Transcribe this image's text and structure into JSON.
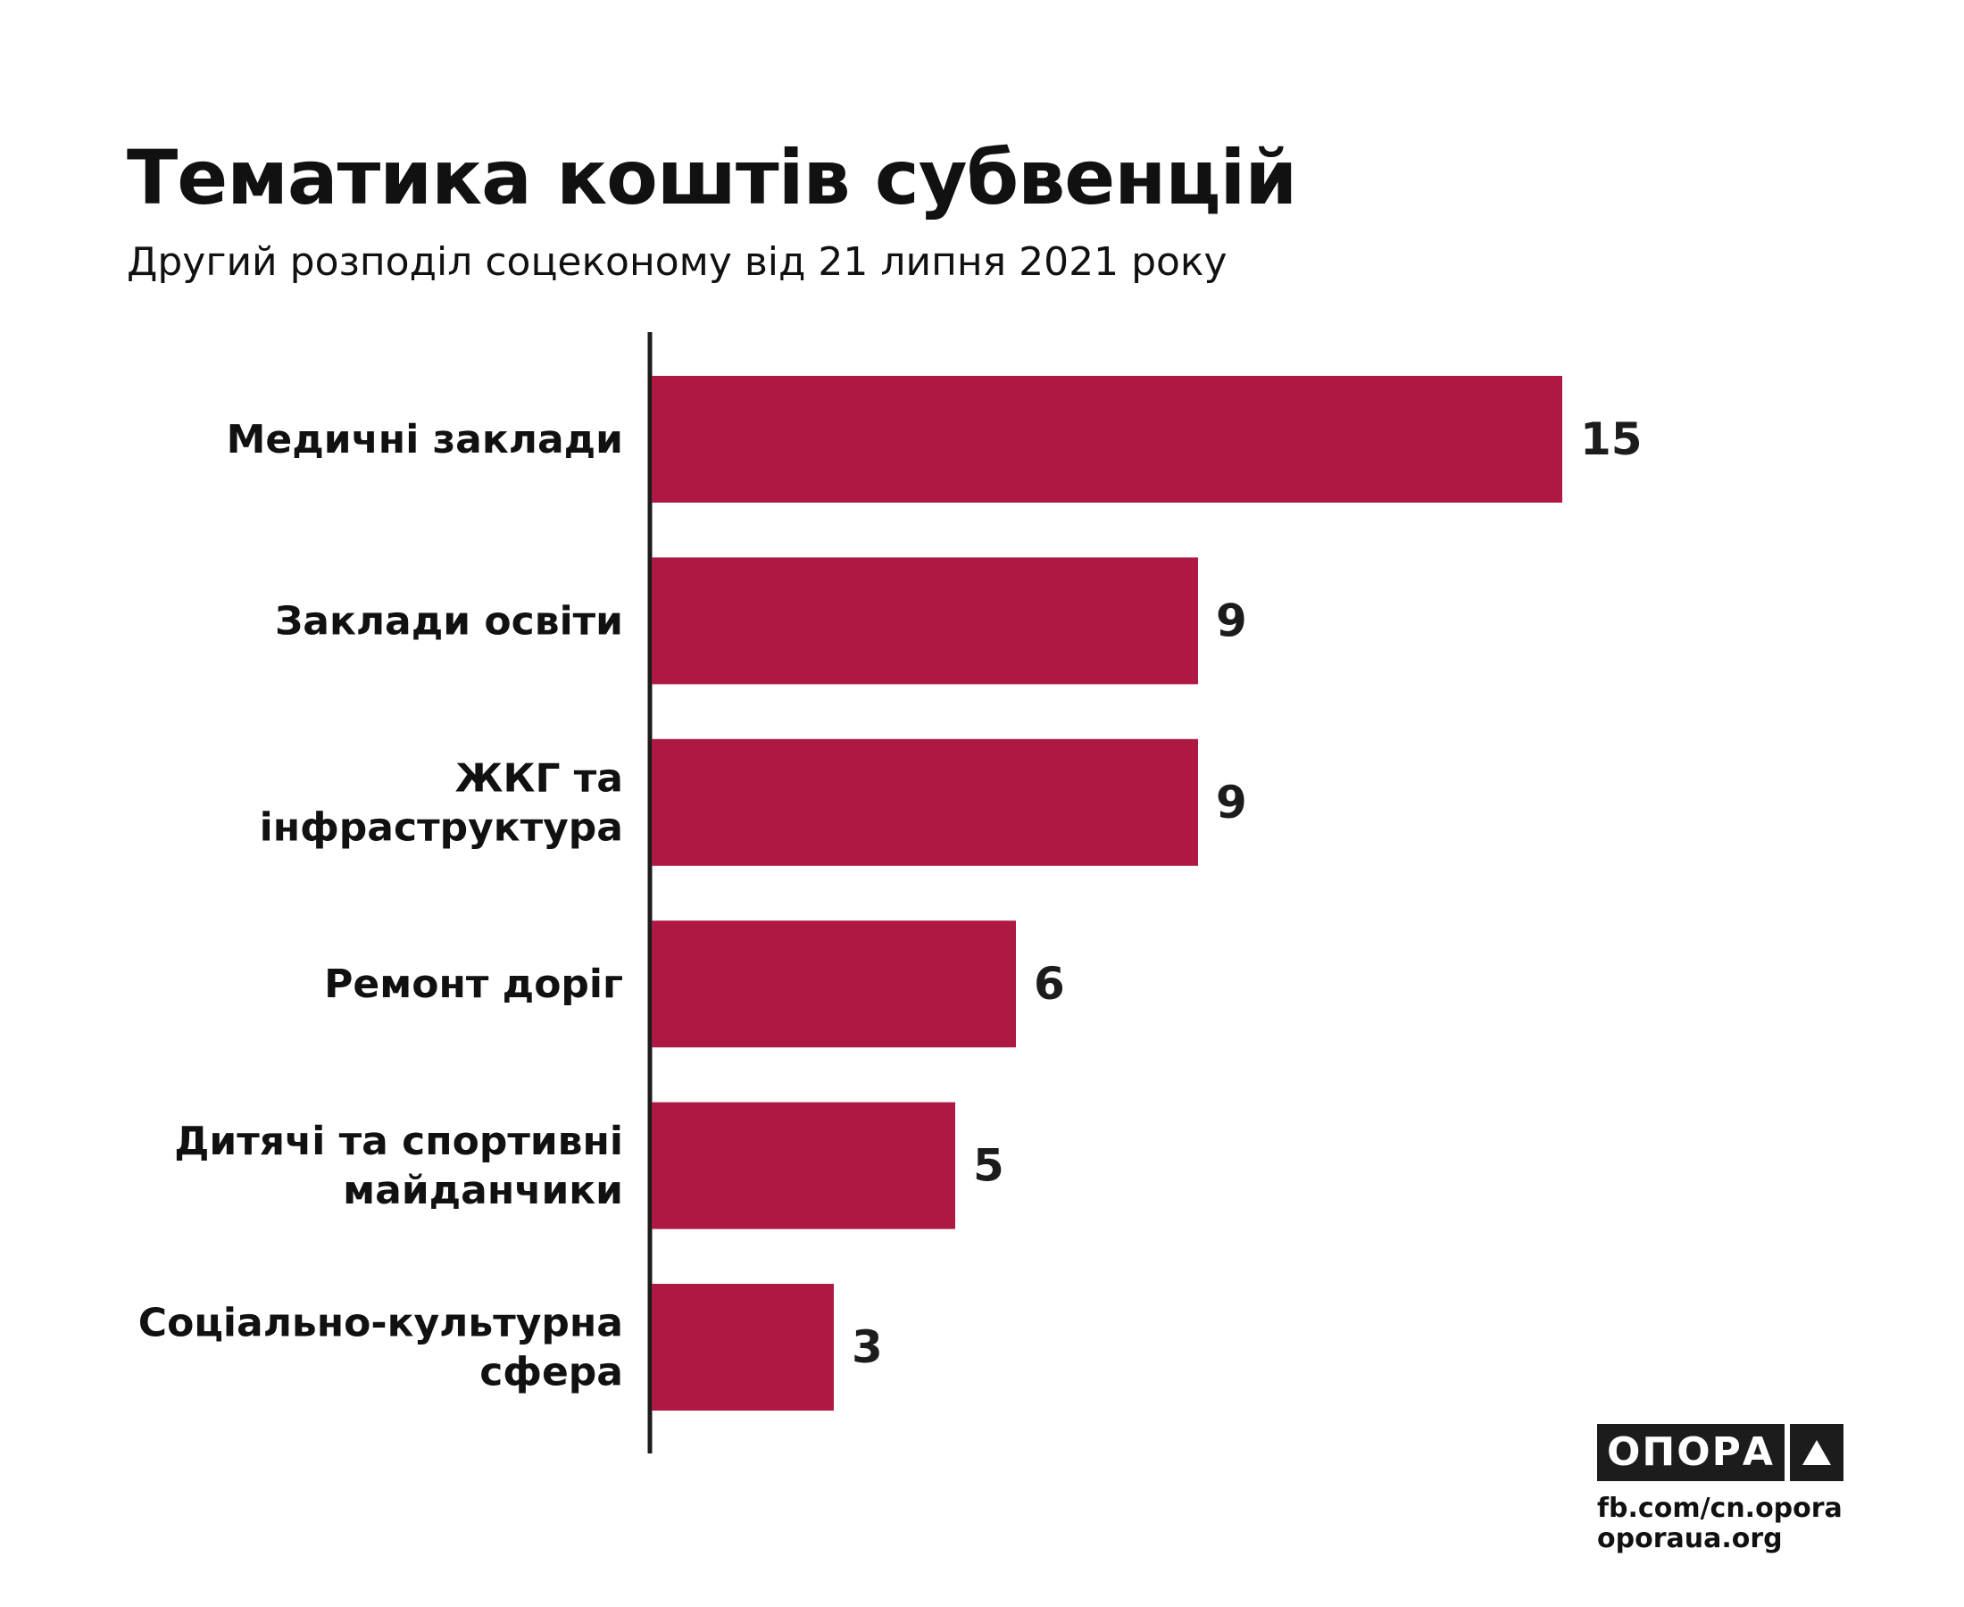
{
  "header": {
    "title": "Тематика коштів субвенцій",
    "subtitle": "Другий розподіл соцеконому від 21 липня 2021 року"
  },
  "chart_data": {
    "type": "bar",
    "orientation": "horizontal",
    "title": "Тематика коштів субвенцій",
    "subtitle": "Другий розподіл соцеконому від 21 липня 2021 року",
    "categories": [
      "Медичні заклади",
      "Заклади освіти",
      "ЖКГ та інфраструктура",
      "Ремонт доріг",
      "Дитячі та спортивні майданчики",
      "Соціально-культурна сфера"
    ],
    "category_lines": [
      [
        "Медичні заклади"
      ],
      [
        "Заклади освіти"
      ],
      [
        "ЖКГ та",
        "інфраструктура"
      ],
      [
        "Ремонт доріг"
      ],
      [
        "Дитячі та спортивні",
        "майданчики"
      ],
      [
        "Соціально-культурна",
        "сфера"
      ]
    ],
    "values": [
      15,
      9,
      9,
      6,
      5,
      3
    ],
    "xlabel": "",
    "ylabel": "",
    "xlim": [
      0,
      15
    ],
    "grid": false,
    "data_labels": true,
    "bar_color": "#ad1942",
    "axis_color": "#1c1c1c"
  },
  "brand": {
    "logo_text": "ОПОРА",
    "logo_icon": "triangle-up-icon",
    "links": [
      "fb.com/cn.opora",
      "oporaua.org"
    ]
  }
}
